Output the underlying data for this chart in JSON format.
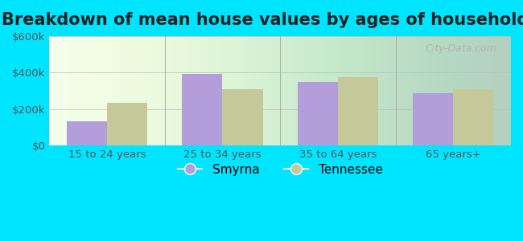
{
  "title": "Breakdown of mean house values by ages of householders",
  "categories": [
    "15 to 24 years",
    "25 to 34 years",
    "35 to 64 years",
    "65 years+"
  ],
  "smyrna_values": [
    130000,
    390000,
    350000,
    285000
  ],
  "tennessee_values": [
    235000,
    310000,
    375000,
    310000
  ],
  "smyrna_color": "#b39ddb",
  "tennessee_color": "#c5c99a",
  "background_color": "#00e5ff",
  "ylim": [
    0,
    600000
  ],
  "yticks": [
    0,
    200000,
    400000,
    600000
  ],
  "ytick_labels": [
    "$0",
    "$200k",
    "$400k",
    "$600k"
  ],
  "legend_smyrna": "Smyrna",
  "legend_tennessee": "Tennessee",
  "title_fontsize": 15,
  "tick_fontsize": 9.5,
  "legend_fontsize": 11,
  "bar_width": 0.35,
  "watermark": "City-Data.com"
}
